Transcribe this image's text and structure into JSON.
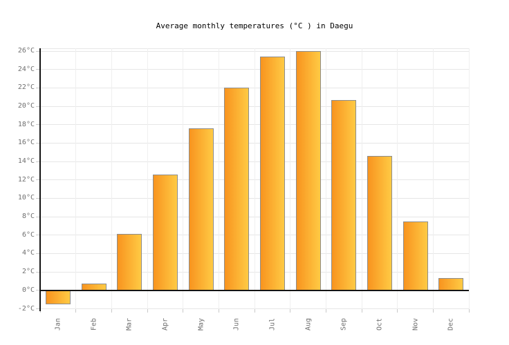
{
  "chart_data": {
    "type": "bar",
    "title": "Average monthly temperatures (°C ) in Daegu",
    "categories": [
      "Jan",
      "Feb",
      "Mar",
      "Apr",
      "May",
      "Jun",
      "Jul",
      "Aug",
      "Sep",
      "Oct",
      "Nov",
      "Dec"
    ],
    "values": [
      -1.5,
      0.7,
      6.1,
      12.6,
      17.6,
      22.0,
      25.4,
      26.0,
      20.7,
      14.6,
      7.5,
      1.3
    ],
    "unit": "°C",
    "xlabel": "",
    "ylabel": "",
    "ylim": [
      -2,
      26.3
    ],
    "ytick_values": [
      -2,
      0,
      2,
      4,
      6,
      8,
      10,
      12,
      14,
      16,
      18,
      20,
      22,
      24,
      26
    ],
    "ytick_labels": [
      "-2°C",
      "0°C",
      "2°C",
      "4°C",
      "6°C",
      "8°C",
      "10°C",
      "12°C",
      "14°C",
      "16°C",
      "18°C",
      "20°C",
      "22°C",
      "24°C",
      "26°C"
    ],
    "grid": true,
    "legend": false,
    "colors": {
      "bar_gradient_start": "#F8941F",
      "bar_gradient_end": "#FFCA44",
      "bar_border": "#8C8C8C",
      "h_gridline": "#E6E6E6",
      "v_gridline": "#EFEFEF",
      "axis_line": "#141414",
      "tick": "#C9C9C9",
      "axis_label_text": "#6F6F6F",
      "title_text": "#000000",
      "background": "#FFFFFF"
    }
  }
}
